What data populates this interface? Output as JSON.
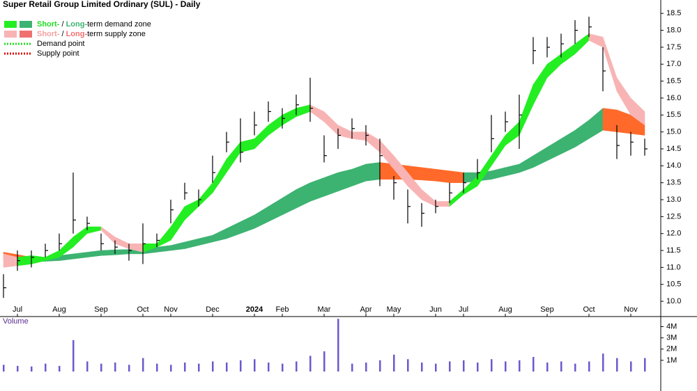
{
  "chart_data": [
    {
      "type": "ohlc",
      "title": "Super Retail Group Limited Ordinary (SUL) - Daily",
      "categories": [
        null,
        "Jul",
        null,
        null,
        "Aug",
        null,
        null,
        "Sep",
        null,
        null,
        "Oct",
        null,
        "Nov",
        null,
        null,
        "Dec",
        null,
        null,
        "2024",
        null,
        "Feb",
        null,
        null,
        "Mar",
        null,
        null,
        "Apr",
        null,
        "May",
        null,
        null,
        "Jun",
        null,
        "Jul",
        null,
        null,
        "Aug",
        null,
        null,
        "Sep",
        null,
        null,
        "Oct",
        null,
        null,
        "Nov",
        null
      ],
      "high": [
        10.8,
        11.5,
        11.5,
        11.7,
        12.0,
        13.8,
        12.5,
        12.0,
        11.8,
        11.7,
        12.3,
        12.0,
        13.0,
        13.5,
        13.3,
        14.3,
        15.0,
        15.4,
        15.6,
        15.9,
        15.7,
        16.1,
        16.6,
        14.9,
        15.1,
        15.4,
        15.2,
        14.8,
        13.7,
        13.3,
        12.9,
        13.0,
        13.5,
        13.8,
        14.2,
        15.5,
        15.6,
        16.1,
        17.8,
        17.8,
        17.9,
        18.3,
        18.4,
        17.5,
        15.2,
        15.0,
        14.8
      ],
      "low": [
        10.1,
        10.9,
        11.0,
        11.3,
        11.5,
        12.0,
        12.1,
        11.5,
        11.4,
        11.2,
        11.1,
        11.6,
        12.3,
        13.0,
        12.8,
        13.5,
        14.4,
        14.1,
        14.9,
        15.3,
        15.1,
        15.5,
        15.3,
        14.1,
        14.5,
        14.8,
        14.6,
        13.4,
        13.0,
        12.3,
        12.2,
        12.6,
        12.9,
        13.2,
        13.6,
        14.4,
        15.0,
        14.5,
        17.0,
        17.2,
        17.2,
        17.6,
        17.8,
        16.2,
        14.2,
        14.3,
        14.3
      ],
      "close": [
        10.4,
        11.2,
        11.3,
        11.5,
        11.7,
        12.4,
        12.3,
        11.7,
        11.6,
        11.5,
        11.7,
        11.8,
        12.7,
        13.2,
        13.0,
        13.8,
        14.7,
        14.4,
        15.2,
        15.6,
        15.4,
        15.8,
        15.7,
        14.3,
        14.9,
        15.1,
        14.9,
        14.3,
        13.5,
        12.8,
        12.6,
        12.8,
        13.2,
        13.5,
        13.8,
        14.8,
        15.3,
        15.5,
        17.4,
        17.5,
        17.6,
        18.0,
        18.1,
        16.8,
        14.6,
        14.7,
        14.5
      ],
      "color": "#000000",
      "zones": [
        {
          "upper": [
            11.45,
            11.38,
            11.3,
            11.3,
            11.35,
            11.4,
            11.45,
            11.5,
            11.52,
            11.53,
            11.55,
            11.6,
            11.65,
            11.75,
            11.85,
            11.95,
            12.15,
            12.35,
            12.55,
            12.8,
            13.05,
            13.3,
            13.5,
            13.65,
            13.8,
            13.9,
            14.05,
            14.1,
            14.05,
            14.0,
            13.95,
            13.9,
            13.85,
            13.8,
            13.8,
            13.85,
            13.95,
            14.05,
            14.3,
            14.55,
            14.8,
            15.05,
            15.35,
            15.7,
            15.65,
            15.5,
            15.3
          ],
          "lower": [
            11.25,
            11.2,
            11.15,
            11.18,
            11.2,
            11.25,
            11.3,
            11.35,
            11.37,
            11.4,
            11.4,
            11.45,
            11.5,
            11.55,
            11.65,
            11.75,
            11.85,
            12.0,
            12.15,
            12.35,
            12.55,
            12.75,
            12.95,
            13.1,
            13.25,
            13.4,
            13.55,
            13.6,
            13.6,
            13.6,
            13.58,
            13.55,
            13.5,
            13.5,
            13.55,
            13.6,
            13.7,
            13.8,
            13.95,
            14.15,
            14.35,
            14.55,
            14.8,
            15.05,
            15.0,
            14.95,
            14.9
          ],
          "demand_color": "#3cb371",
          "supply_color": "#ff6a2a"
        },
        {
          "upper": [
            11.4,
            11.3,
            11.35,
            11.3,
            11.5,
            11.9,
            12.2,
            12.2,
            11.9,
            11.7,
            11.7,
            11.7,
            12.2,
            12.8,
            13.0,
            13.5,
            14.2,
            14.7,
            14.8,
            15.2,
            15.5,
            15.7,
            15.8,
            15.6,
            15.2,
            15.0,
            15.0,
            14.75,
            14.3,
            13.8,
            13.3,
            12.95,
            12.95,
            13.3,
            13.7,
            14.3,
            14.9,
            15.3,
            16.4,
            17.0,
            17.3,
            17.6,
            17.9,
            17.8,
            16.6,
            16.0,
            15.6
          ],
          "lower": [
            11.0,
            11.05,
            11.1,
            11.2,
            11.3,
            11.6,
            12.0,
            12.1,
            11.7,
            11.55,
            11.45,
            11.6,
            11.8,
            12.4,
            12.8,
            13.2,
            13.8,
            14.4,
            14.5,
            14.9,
            15.2,
            15.45,
            15.6,
            15.3,
            14.9,
            14.8,
            14.75,
            14.4,
            13.9,
            13.4,
            13.0,
            12.8,
            12.8,
            13.15,
            13.4,
            14.0,
            14.6,
            14.9,
            15.8,
            16.6,
            17.0,
            17.3,
            17.7,
            17.5,
            16.2,
            15.5,
            15.2
          ],
          "demand_color": "#22ee22",
          "supply_color": "#f8b4b4"
        }
      ],
      "legend": [
        {
          "parts": [
            "Short-",
            " / ",
            "Long-",
            "term demand zone"
          ],
          "part_colors": [
            "#22dd22",
            "#000000",
            "#3cb371",
            "#000000"
          ],
          "swatches": [
            "#22ee22",
            "#3cb371"
          ]
        },
        {
          "parts": [
            "Short-",
            " / ",
            "Long-",
            "term supply zone"
          ],
          "part_colors": [
            "#f4a0a0",
            "#000000",
            "#f07070",
            "#000000"
          ],
          "swatches": [
            "#f8b4b4",
            "#f07070"
          ]
        },
        {
          "parts": [
            "Demand point"
          ],
          "part_colors": [
            "#000000"
          ],
          "dotted": "#22dd22"
        },
        {
          "parts": [
            "Supply point"
          ],
          "part_colors": [
            "#000000"
          ],
          "dotted": "#dd0000"
        }
      ],
      "ylim": [
        9.55,
        18.73
      ],
      "yticks": [
        {
          "value": 10,
          "label": "10.0"
        },
        10.5,
        {
          "value": 11,
          "label": "11.0"
        },
        11.5,
        {
          "value": 12,
          "label": "12.0"
        },
        12.5,
        {
          "value": 13,
          "label": "13.0"
        },
        13.5,
        {
          "value": 14,
          "label": "14.0"
        },
        14.5,
        {
          "value": 15,
          "label": "15.0"
        },
        15.5,
        {
          "value": 16,
          "label": "16.0"
        },
        16.5,
        {
          "value": 17,
          "label": "17.0"
        },
        17.5,
        {
          "value": 18,
          "label": "18.0"
        },
        18.5
      ]
    },
    {
      "type": "bar",
      "title": "Volume",
      "values": [
        600000,
        500000,
        450000,
        700000,
        500000,
        2800000,
        900000,
        700000,
        800000,
        600000,
        1200000,
        700000,
        600000,
        800000,
        700000,
        900000,
        800000,
        1000000,
        1100000,
        800000,
        700000,
        900000,
        1400000,
        1800000,
        4700000,
        700000,
        800000,
        1000000,
        1500000,
        1100000,
        800000,
        700000,
        900000,
        1000000,
        800000,
        1100000,
        900000,
        1000000,
        1300000,
        800000,
        900000,
        700000,
        900000,
        1600000,
        1200000,
        900000,
        1200000
      ],
      "color": "#6a5acd",
      "ylim": [
        0,
        4900000
      ],
      "yticks": [
        {
          "value": 1000000,
          "label": "1M"
        },
        {
          "value": 2000000,
          "label": "2M"
        },
        {
          "value": 3000000,
          "label": "3M"
        },
        {
          "value": 4000000,
          "label": "4M"
        }
      ]
    }
  ]
}
